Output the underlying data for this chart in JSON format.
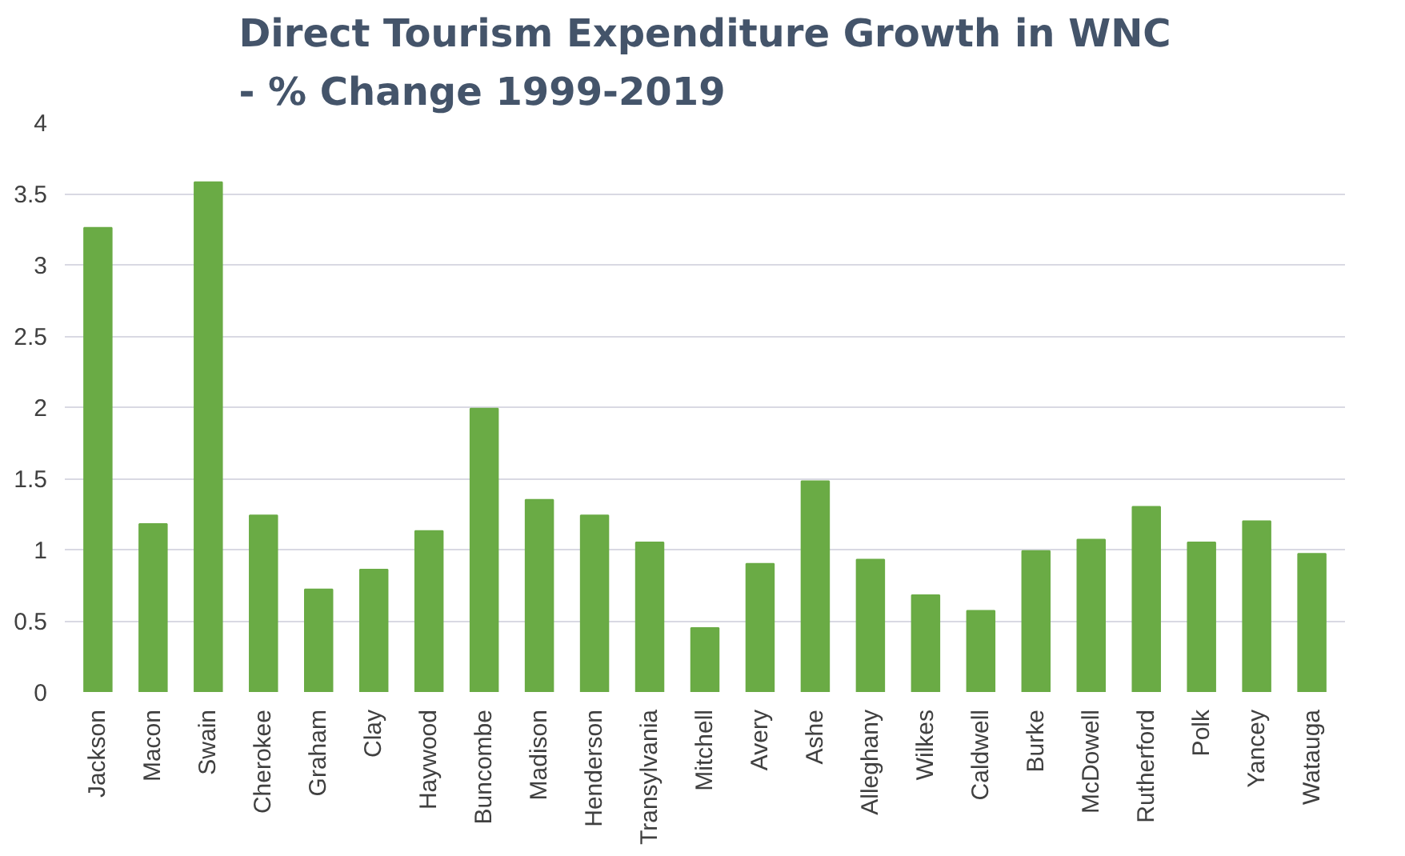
{
  "chart_data": {
    "type": "bar",
    "title": "Direct Tourism Expenditure Growth in WNC\n- % Change 1999-2019",
    "categories": [
      "Jackson",
      "Macon",
      "Swain",
      "Cherokee",
      "Graham",
      "Clay",
      "Haywood",
      "Buncombe",
      "Madison",
      "Henderson",
      "Transylvania",
      "Mitchell",
      "Avery",
      "Ashe",
      "Alleghany",
      "Wilkes",
      "Caldwell",
      "Burke",
      "McDowell",
      "Rutherford",
      "Polk",
      "Yancey",
      "Watauga"
    ],
    "values": [
      3.26,
      1.18,
      3.58,
      1.24,
      0.72,
      0.86,
      1.13,
      1.99,
      1.35,
      1.24,
      1.05,
      0.45,
      0.9,
      1.48,
      0.93,
      0.68,
      0.57,
      0.99,
      1.07,
      1.3,
      1.05,
      1.2,
      0.97
    ],
    "color": "#6aab45",
    "ylim": [
      0,
      4
    ],
    "yticks": [
      0,
      0.5,
      1,
      1.5,
      2,
      2.5,
      3,
      3.5,
      4
    ],
    "grid": "y"
  }
}
